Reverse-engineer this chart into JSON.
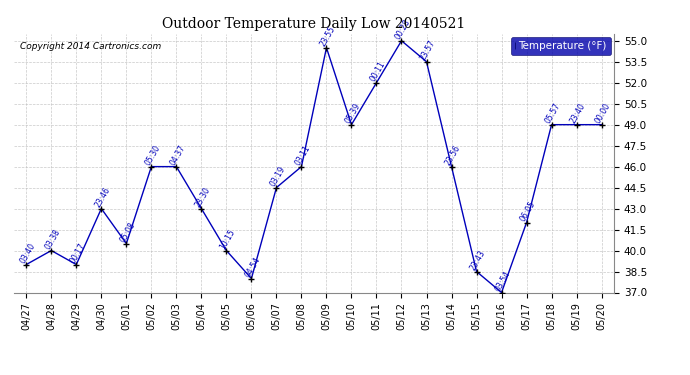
{
  "title": "Outdoor Temperature Daily Low 20140521",
  "copyright": "Copyright 2014 Cartronics.com",
  "legend_label": "Temperature (°F)",
  "x_labels": [
    "04/27",
    "04/28",
    "04/29",
    "04/30",
    "05/01",
    "05/02",
    "05/03",
    "05/04",
    "05/05",
    "05/06",
    "05/07",
    "05/08",
    "05/09",
    "05/10",
    "05/11",
    "05/12",
    "05/13",
    "05/14",
    "05/15",
    "05/16",
    "05/17",
    "05/18",
    "05/19",
    "05/20"
  ],
  "y_values": [
    39.0,
    40.0,
    39.0,
    43.0,
    40.5,
    46.0,
    46.0,
    43.0,
    40.0,
    38.0,
    44.5,
    46.0,
    54.5,
    49.0,
    52.0,
    55.0,
    53.5,
    46.0,
    38.5,
    37.0,
    42.0,
    49.0,
    49.0,
    49.0
  ],
  "point_labels": [
    "03:40",
    "03:38",
    "00:17",
    "23:46",
    "05:08",
    "05:30",
    "04:37",
    "23:30",
    "10:15",
    "04:54",
    "03:19",
    "03:11",
    "23:55",
    "05:39",
    "00:11",
    "00:28",
    "23:57",
    "23:56",
    "23:43",
    "03:54",
    "06:05",
    "05:57",
    "23:40",
    "00:00"
  ],
  "ylim": [
    37.0,
    55.5
  ],
  "yticks": [
    37.0,
    38.5,
    40.0,
    41.5,
    43.0,
    44.5,
    46.0,
    47.5,
    49.0,
    50.5,
    52.0,
    53.5,
    55.0
  ],
  "line_color": "#0000bb",
  "marker_color": "#000000",
  "bg_color": "#ffffff",
  "grid_color": "#bbbbbb",
  "title_color": "#000000",
  "label_color": "#0000bb",
  "legend_bg": "#0000aa",
  "legend_fg": "#ffffff"
}
